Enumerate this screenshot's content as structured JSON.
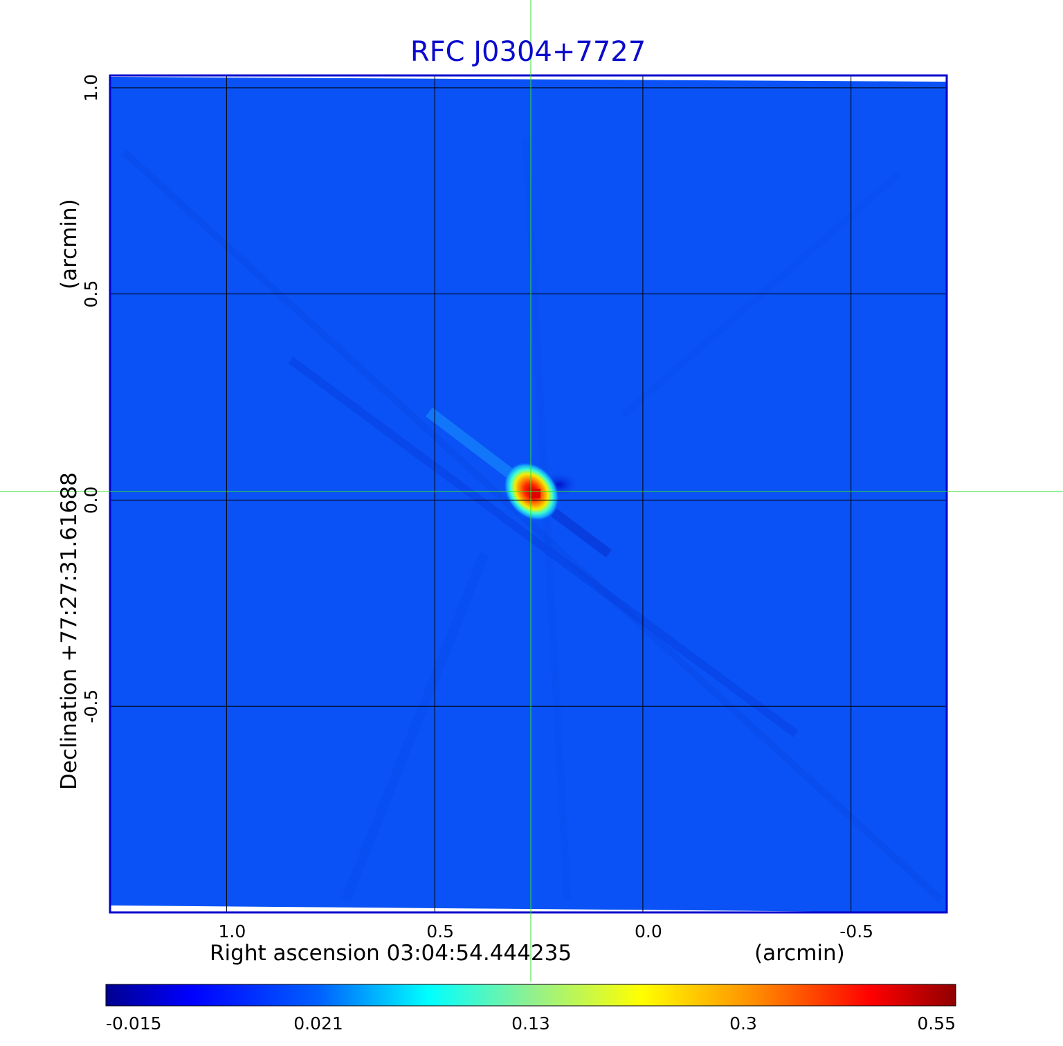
{
  "chart_data": {
    "type": "heatmap",
    "title": "RFC J0304+7727",
    "xlabel": "Right ascension  03:04:54.444235",
    "xunit": "(arcmin)",
    "ylabel": "Declination  +77:27:31.61688",
    "yunit": "(arcmin)",
    "xlim": [
      1.28,
      -0.73
    ],
    "ylim": [
      -1.0,
      1.03
    ],
    "x_ticks": [
      "1.0",
      "0.5",
      "0.0",
      "-0.5"
    ],
    "x_tick_values": [
      1.0,
      0.5,
      0.0,
      -0.5
    ],
    "y_ticks": [
      "-0.5",
      "0.0",
      "0.5",
      "1.0"
    ],
    "y_tick_values": [
      -0.5,
      0.0,
      0.5,
      1.0
    ],
    "grid": true,
    "crosshair": [
      0.27,
      0.03
    ],
    "source_peak": {
      "x": 0.28,
      "y": 0.02,
      "value": 0.55
    },
    "colorbar": {
      "ticks": [
        "-0.015",
        "0.021",
        "0.13",
        "0.3",
        "0.55"
      ],
      "tick_values": [
        -0.015,
        0.021,
        0.13,
        0.3,
        0.55
      ],
      "colormap": "jet"
    },
    "colors": {
      "title": "#0a0acc",
      "frame": "#0000cc",
      "background_map": "#0a50f5",
      "grid": "#000000",
      "crosshair": "#30e030"
    }
  }
}
